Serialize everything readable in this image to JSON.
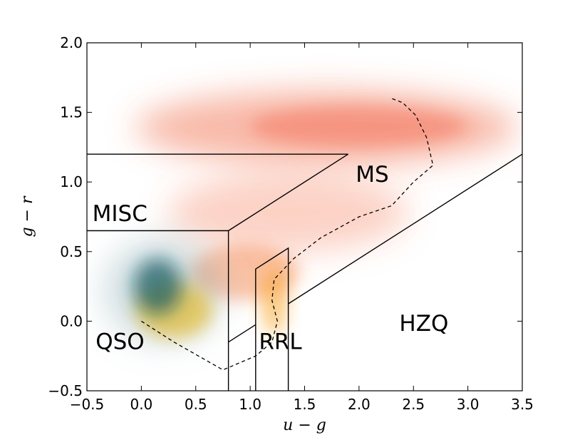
{
  "chart_data": {
    "type": "scatter",
    "title": "",
    "xlabel": "u − g",
    "ylabel": "g − r",
    "xlim": [
      -0.5,
      3.5
    ],
    "ylim": [
      -0.5,
      2.0
    ],
    "grid": false,
    "x_ticks": [
      {
        "value": -0.5,
        "label": "−0.5"
      },
      {
        "value": 0.0,
        "label": "0.0"
      },
      {
        "value": 0.5,
        "label": "0.5"
      },
      {
        "value": 1.0,
        "label": "1.0"
      },
      {
        "value": 1.5,
        "label": "1.5"
      },
      {
        "value": 2.0,
        "label": "2.0"
      },
      {
        "value": 2.5,
        "label": "2.5"
      },
      {
        "value": 3.0,
        "label": "3.0"
      },
      {
        "value": 3.5,
        "label": "3.5"
      }
    ],
    "y_ticks": [
      {
        "value": -0.5,
        "label": "−0.5"
      },
      {
        "value": 0.0,
        "label": "0.0"
      },
      {
        "value": 0.5,
        "label": "0.5"
      },
      {
        "value": 1.0,
        "label": "1.0"
      },
      {
        "value": 1.5,
        "label": "1.5"
      },
      {
        "value": 2.0,
        "label": "2.0"
      }
    ],
    "density_clouds": [
      {
        "name": "main-sequence",
        "color": "#f0663e",
        "cx": 1.7,
        "cy": 1.39,
        "rx": 1.75,
        "ry": 0.27,
        "opacity": 0.45
      },
      {
        "name": "main-sequence-core",
        "color": "#f05030",
        "cx": 2.0,
        "cy": 1.4,
        "rx": 1.0,
        "ry": 0.15,
        "opacity": 0.35
      },
      {
        "name": "stellar-locus",
        "color": "#f46a42",
        "cx": 1.35,
        "cy": 0.78,
        "rx": 1.1,
        "ry": 0.28,
        "opacity": 0.3
      },
      {
        "name": "blue-tail",
        "color": "#f47a3c",
        "cx": 0.95,
        "cy": 0.35,
        "rx": 0.5,
        "ry": 0.2,
        "opacity": 0.45
      },
      {
        "name": "rrl-cloud",
        "color": "#f7a21c",
        "cx": 1.22,
        "cy": 0.15,
        "rx": 0.12,
        "ry": 0.25,
        "opacity": 0.55
      },
      {
        "name": "quasar-halo",
        "color": "#7fa3ad",
        "cx": 0.2,
        "cy": 0.22,
        "rx": 0.55,
        "ry": 0.38,
        "opacity": 0.35
      },
      {
        "name": "quasar-yellow",
        "color": "#e8b000",
        "cx": 0.3,
        "cy": 0.08,
        "rx": 0.35,
        "ry": 0.2,
        "opacity": 0.55
      },
      {
        "name": "quasar-core",
        "color": "#0a5a62",
        "cx": 0.15,
        "cy": 0.25,
        "rx": 0.22,
        "ry": 0.2,
        "opacity": 0.7
      }
    ],
    "boundaries": {
      "solid": [
        {
          "name": "misc-top-line",
          "points": [
            [
              -0.5,
              1.2
            ],
            [
              1.9,
              1.2
            ]
          ]
        },
        {
          "name": "misc-diagonal",
          "points": [
            [
              1.9,
              1.2
            ],
            [
              0.8,
              0.65
            ]
          ]
        },
        {
          "name": "misc-bottom-line",
          "points": [
            [
              -0.5,
              0.65
            ],
            [
              0.8,
              0.65
            ]
          ]
        },
        {
          "name": "qso-right-vertical",
          "points": [
            [
              0.8,
              0.65
            ],
            [
              0.8,
              -0.5
            ]
          ]
        },
        {
          "name": "lower-diagonal",
          "points": [
            [
              0.8,
              -0.15
            ],
            [
              1.05,
              -0.025
            ]
          ]
        },
        {
          "name": "hzq-diagonal",
          "points": [
            [
              1.35,
              0.125
            ],
            [
              3.5,
              1.2
            ]
          ]
        },
        {
          "name": "rrl-box",
          "points": [
            [
              1.05,
              -0.5
            ],
            [
              1.05,
              0.375
            ],
            [
              1.35,
              0.525
            ],
            [
              1.35,
              -0.5
            ]
          ]
        }
      ],
      "dashed": [
        {
          "name": "stellar-locus-contour",
          "points": [
            [
              0.0,
              0.0
            ],
            [
              0.3,
              -0.15
            ],
            [
              0.75,
              -0.35
            ],
            [
              1.05,
              -0.25
            ],
            [
              1.2,
              -0.15
            ],
            [
              1.25,
              0.0
            ],
            [
              1.2,
              0.15
            ],
            [
              1.22,
              0.3
            ],
            [
              1.4,
              0.45
            ],
            [
              1.65,
              0.6
            ],
            [
              2.0,
              0.75
            ],
            [
              2.3,
              0.83
            ],
            [
              2.5,
              1.0
            ],
            [
              2.68,
              1.12
            ],
            [
              2.62,
              1.32
            ],
            [
              2.52,
              1.48
            ],
            [
              2.4,
              1.57
            ],
            [
              2.3,
              1.6
            ]
          ]
        }
      ]
    },
    "region_labels": [
      {
        "text": "MISC",
        "x": -0.45,
        "y": 0.72
      },
      {
        "text": "MS",
        "x": 1.97,
        "y": 1.0
      },
      {
        "text": "QSO",
        "x": -0.42,
        "y": -0.2
      },
      {
        "text": "RRL",
        "x": 1.08,
        "y": -0.2
      },
      {
        "text": "HZQ",
        "x": 2.37,
        "y": -0.07
      }
    ]
  }
}
